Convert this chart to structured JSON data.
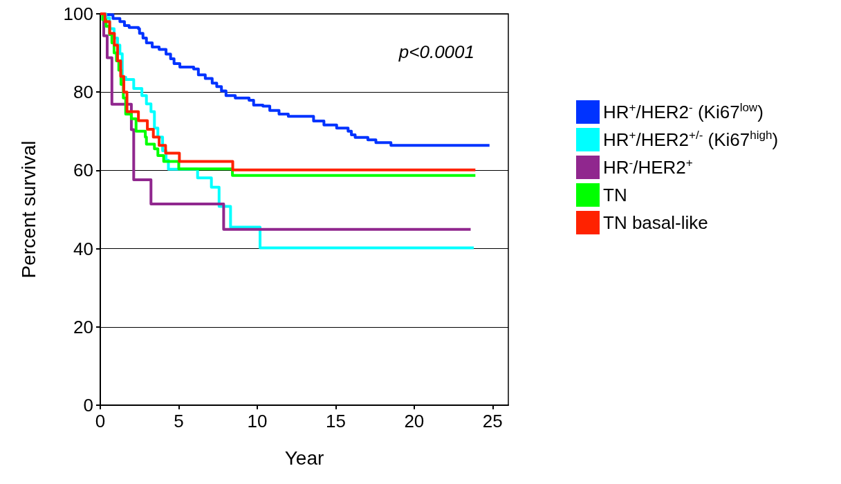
{
  "chart_data": {
    "type": "step",
    "xlabel": "Year",
    "ylabel": "Percent survival",
    "xlim": [
      0,
      26
    ],
    "xticks": [
      0,
      5,
      10,
      15,
      20,
      25
    ],
    "ylim": [
      0,
      100
    ],
    "yticks": [
      0,
      20,
      40,
      60,
      80,
      100
    ],
    "grid": "y",
    "legend": "right",
    "annotations": [
      "p<0.0001"
    ],
    "series": [
      {
        "name": "HR$^{+}$/HER2$^{-}$ (Ki67$^{low}$)",
        "color": "#0033ff",
        "x": [
          0,
          0.22,
          0.81,
          1.25,
          1.54,
          1.84,
          2.43,
          2.5,
          2.72,
          2.94,
          3.31,
          3.75,
          4.19,
          4.48,
          4.7,
          5.07,
          5.95,
          6.25,
          6.69,
          7.13,
          7.42,
          7.72,
          8.01,
          8.6,
          9.48,
          9.77,
          10.36,
          10.8,
          11.39,
          11.98,
          13.59,
          14.25,
          15.06,
          15.79,
          16.0,
          16.24,
          17.05,
          17.56,
          18.52,
          24.8
        ],
        "values": [
          100,
          99.8,
          98.8,
          98,
          97,
          96.5,
          96.2,
          95,
          93.8,
          92.6,
          91.5,
          90.9,
          89.7,
          88.5,
          87.3,
          86.4,
          85.9,
          84.4,
          83.5,
          82.3,
          81.4,
          80.3,
          79.1,
          78.5,
          77.9,
          76.7,
          76.4,
          75.3,
          74.4,
          73.8,
          72.6,
          71.6,
          70.8,
          70,
          69.1,
          68.4,
          67.8,
          67.1,
          66.4,
          66.4
        ]
      },
      {
        "name": "HR$^{+}$/HER2$^{+/-}$ (Ki67$^{high}$)",
        "color": "#00ffff",
        "x": [
          0,
          0.35,
          0.59,
          0.88,
          1.1,
          1.25,
          1.4,
          1.62,
          2.13,
          2.65,
          2.94,
          3.23,
          3.45,
          3.67,
          3.97,
          4.19,
          4.34,
          6.2,
          7.08,
          7.57,
          8.3,
          10.18,
          23.8
        ],
        "values": [
          100,
          99,
          96.2,
          93.8,
          92,
          89.8,
          83.8,
          83.2,
          80.9,
          79.1,
          77,
          75,
          70.8,
          68.5,
          65,
          62.6,
          60.3,
          58.1,
          55.7,
          50.8,
          45.5,
          40.2,
          40.2
        ]
      },
      {
        "name": "HR$^{-}$/HER2$^{+}$",
        "color": "#90278e",
        "x": [
          0,
          0.22,
          0.44,
          0.74,
          1.98,
          2.13,
          3.23,
          7.86,
          23.6
        ],
        "values": [
          100,
          94.4,
          88.8,
          76.9,
          70.4,
          57.6,
          51.4,
          44.9,
          44.9
        ]
      },
      {
        "name": "TN",
        "color": "#00ff00",
        "x": [
          0,
          0.15,
          0.37,
          0.59,
          0.74,
          0.88,
          1.03,
          1.18,
          1.32,
          1.47,
          1.62,
          1.98,
          2.28,
          2.87,
          2.94,
          3.45,
          3.67,
          4.04,
          5.0,
          8.42,
          23.9
        ],
        "values": [
          100,
          98.5,
          96.8,
          94.7,
          92.6,
          90,
          88,
          85.6,
          82,
          78.5,
          74.4,
          73.2,
          70,
          68.5,
          66.7,
          65.5,
          63.8,
          62.3,
          60.4,
          58.7,
          58.7
        ]
      },
      {
        "name": "TN basal-like",
        "color": "#ff2200",
        "x": [
          0,
          0.3,
          0.6,
          0.9,
          1.1,
          1.3,
          1.5,
          1.7,
          2.43,
          3.0,
          3.38,
          3.75,
          4.16,
          5.04,
          8.44,
          23.9
        ],
        "values": [
          100,
          98,
          95,
          92,
          88,
          84,
          80,
          75,
          72.7,
          70.5,
          68.5,
          66.4,
          64.4,
          62.3,
          60.1,
          60.1
        ]
      }
    ]
  }
}
